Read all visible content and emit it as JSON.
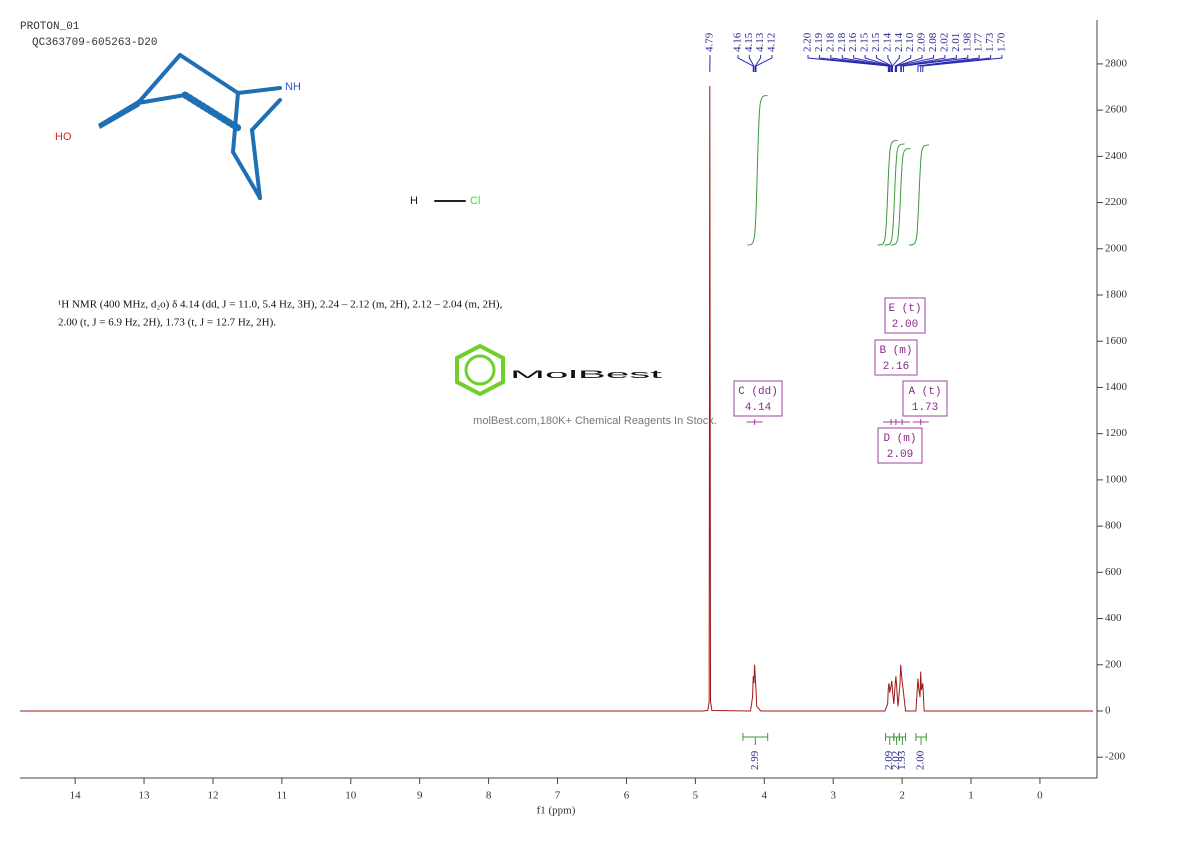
{
  "chart_data": {
    "type": "line",
    "title": "PROTON_01",
    "subtitle": "QC363709-605263-D20",
    "xlabel": "f1 (ppm)",
    "description": [
      "¹H NMR (400 MHz, d₂o) δ 4.14 (dd, J = 11.0, 5.4 Hz, 3H), 2.24 – 2.12 (m, 2H), 2.12 – 2.04 (m, 2H),",
      "2.00 (t, J = 6.9 Hz, 2H), 1.73 (t, J = 12.7 Hz, 2H)."
    ],
    "color": "#a01818",
    "x": [
      14.8,
      4.9,
      4.82,
      4.8,
      4.79,
      4.78,
      4.76,
      4.2,
      4.17,
      4.16,
      4.15,
      4.14,
      4.13,
      4.12,
      4.11,
      4.05,
      2.25,
      2.21,
      2.2,
      2.19,
      2.18,
      2.16,
      2.15,
      2.14,
      2.12,
      2.1,
      2.09,
      2.08,
      2.06,
      2.03,
      2.02,
      2.01,
      2,
      1.98,
      1.95,
      1.8,
      1.77,
      1.76,
      1.74,
      1.73,
      1.72,
      1.7,
      1.68,
      -0.77
    ],
    "values": [
      0,
      0,
      2,
      40,
      2705,
      40,
      2,
      0,
      60,
      150,
      120,
      200,
      140,
      90,
      20,
      0,
      0,
      30,
      100,
      120,
      80,
      110,
      130,
      90,
      30,
      120,
      150,
      110,
      20,
      120,
      200,
      160,
      130,
      80,
      0,
      0,
      140,
      100,
      60,
      170,
      90,
      120,
      0,
      0
    ],
    "xlim": [
      14.8,
      -0.77
    ],
    "xticks": [
      14,
      13,
      12,
      11,
      10,
      9,
      8,
      7,
      6,
      5,
      4,
      3,
      2,
      1,
      0
    ],
    "ylim": [
      -290,
      2990
    ],
    "yticks": [
      -200,
      0,
      200,
      400,
      600,
      800,
      1000,
      1200,
      1400,
      1600,
      1800,
      2000,
      2200,
      2400,
      2600,
      2800
    ],
    "peaks": [
      {
        "value": 4.79,
        "label": "4.79"
      },
      {
        "value": 4.16,
        "label": "4.16"
      },
      {
        "value": 4.15,
        "label": "4.15"
      },
      {
        "value": 4.13,
        "label": "4.13"
      },
      {
        "value": 4.12,
        "label": "4.12"
      },
      {
        "value": 2.2,
        "label": "2.20"
      },
      {
        "value": 2.19,
        "label": "2.19"
      },
      {
        "value": 2.18,
        "label": "2.18"
      },
      {
        "value": 2.18,
        "label": "2.18"
      },
      {
        "value": 2.16,
        "label": "2.16"
      },
      {
        "value": 2.15,
        "label": "2.15"
      },
      {
        "value": 2.15,
        "label": "2.15"
      },
      {
        "value": 2.14,
        "label": "2.14"
      },
      {
        "value": 2.14,
        "label": "2.14"
      },
      {
        "value": 2.1,
        "label": "2.10"
      },
      {
        "value": 2.09,
        "label": "2.09"
      },
      {
        "value": 2.08,
        "label": "2.08"
      },
      {
        "value": 2.02,
        "label": "2.02"
      },
      {
        "value": 2.01,
        "label": "2.01"
      },
      {
        "value": 1.98,
        "label": "1.98"
      },
      {
        "value": 1.77,
        "label": "1.77"
      },
      {
        "value": 1.73,
        "label": "1.73"
      },
      {
        "value": 1.7,
        "label": "1.70"
      }
    ],
    "integrals": [
      {
        "range": [
          4.31,
          3.95
        ],
        "value": 2.99,
        "label": "2.99"
      },
      {
        "range": [
          2.24,
          2.12
        ],
        "value": 2.09,
        "label": "2.09"
      },
      {
        "range": [
          2.12,
          2.04
        ],
        "value": 2.02,
        "label": "2.02"
      },
      {
        "range": [
          2.04,
          1.95
        ],
        "value": 1.93,
        "label": "1.93"
      },
      {
        "range": [
          1.8,
          1.65
        ],
        "value": 2,
        "label": "2.00"
      }
    ],
    "multiplets": [
      {
        "name": "E (t)",
        "shift": {
          "value": 2,
          "label": "2.00"
        }
      },
      {
        "name": "B (m)",
        "shift": {
          "value": 2.16,
          "label": "2.16"
        }
      },
      {
        "name": "C (dd)",
        "shift": {
          "value": 4.14,
          "label": "4.14"
        }
      },
      {
        "name": "A (t)",
        "shift": {
          "value": 1.73,
          "label": "1.73"
        }
      },
      {
        "name": "D (m)",
        "shift": {
          "value": 2.09,
          "label": "2.09"
        }
      }
    ]
  },
  "structure": {
    "atoms": [
      "NH",
      "HO",
      "H",
      "Cl"
    ]
  },
  "watermark": {
    "brand": "MolBest",
    "tagline": "molBest.com,180K+ Chemical Reagents In Stock."
  }
}
